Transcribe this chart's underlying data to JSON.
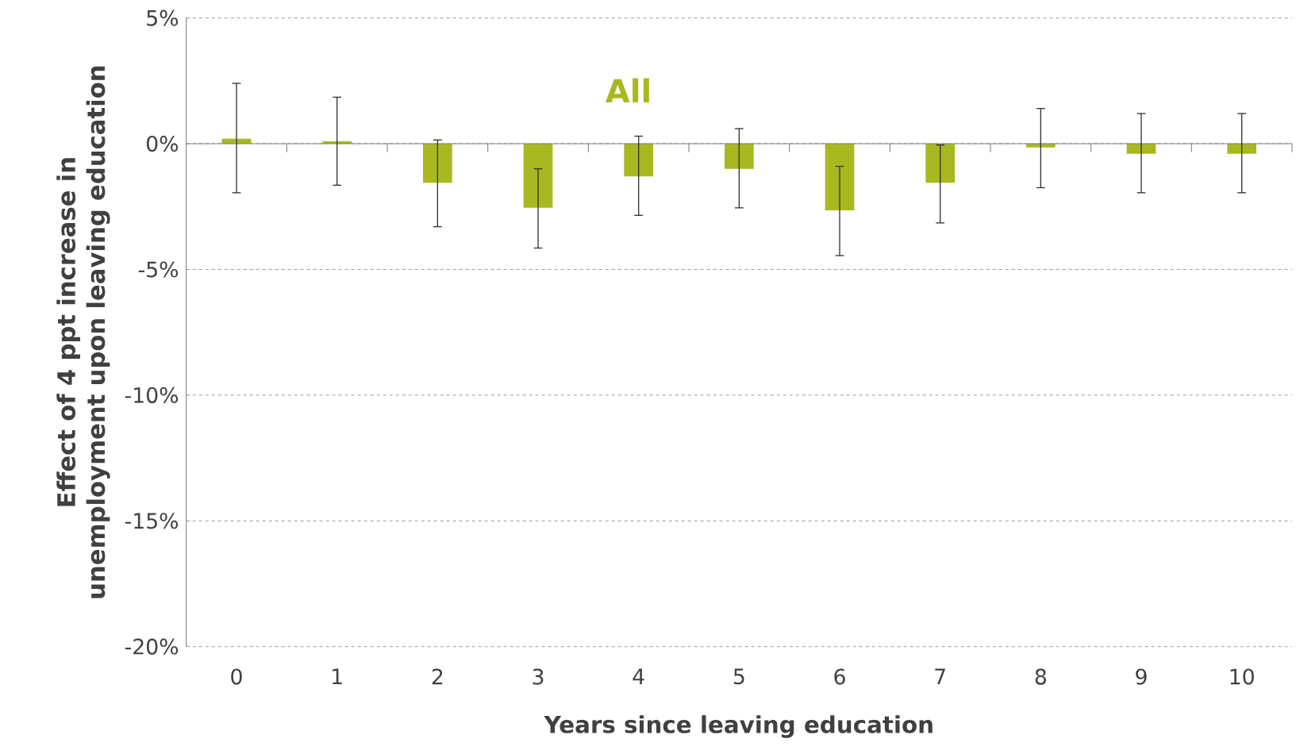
{
  "chart_data": {
    "type": "bar",
    "xlabel": "Years since leaving education",
    "ylabel": "Effect of 4 ppt increase in unemployment upon leaving education",
    "annotations": [
      "All"
    ],
    "categories": [
      "0",
      "1",
      "2",
      "3",
      "4",
      "5",
      "6",
      "7",
      "8",
      "9",
      "10"
    ],
    "series": [
      {
        "color": "#a8b820",
        "values": [
          0.2,
          0.1,
          -1.55,
          -2.55,
          -1.3,
          -1.0,
          -2.65,
          -1.55,
          -0.15,
          -0.4,
          -0.4
        ],
        "errors": [
          [
            -1.95,
            2.4
          ],
          [
            -1.65,
            1.85
          ],
          [
            -3.3,
            0.15
          ],
          [
            -4.15,
            -1.0
          ],
          [
            -2.85,
            0.3
          ],
          [
            -2.55,
            0.6
          ],
          [
            -4.45,
            -0.9
          ],
          [
            -3.15,
            -0.05
          ],
          [
            -1.75,
            1.4
          ],
          [
            -1.95,
            1.2
          ],
          [
            -1.95,
            1.2
          ]
        ]
      }
    ],
    "ylim": [
      -20,
      5
    ],
    "yticks": [
      {
        "value": -20,
        "label": "-20%"
      },
      {
        "value": -15,
        "label": "-15%"
      },
      {
        "value": -10,
        "label": "-10%"
      },
      {
        "value": -5,
        "label": "-5%"
      },
      {
        "value": 0,
        "label": "0%"
      },
      {
        "value": 5,
        "label": "5%"
      }
    ],
    "grid": "y"
  }
}
